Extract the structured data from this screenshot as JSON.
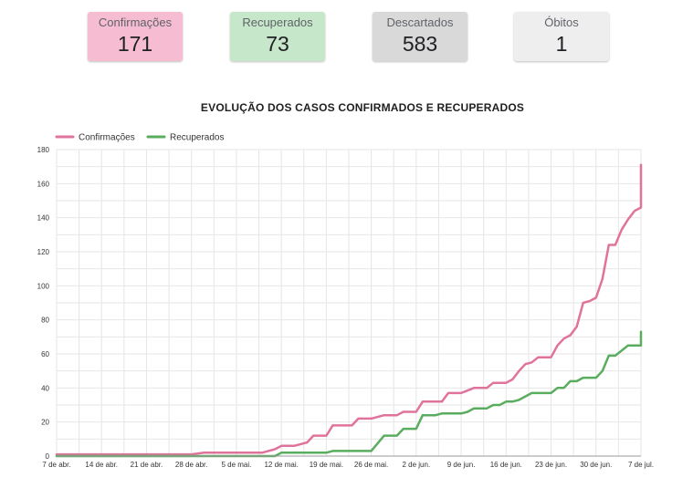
{
  "cards": [
    {
      "label": "Confirmações",
      "value": "171",
      "color": "#f6bcd1"
    },
    {
      "label": "Recuperados",
      "value": "73",
      "color": "#c6e7c9"
    },
    {
      "label": "Descartados",
      "value": "583",
      "color": "#d9d9d9"
    },
    {
      "label": "Óbitos",
      "value": "1",
      "color": "#eeeeee"
    }
  ],
  "chart_data": {
    "type": "line",
    "title": "EVOLUÇÃO DOS CASOS CONFIRMADOS E RECUPERADOS",
    "legend_position": "top-left",
    "grid": true,
    "x_range": [
      "2020-04-07",
      "2020-07-07"
    ],
    "xticks": [
      {
        "date": "2020-04-07",
        "label": "7 de abr."
      },
      {
        "date": "2020-04-14",
        "label": "14 de abr."
      },
      {
        "date": "2020-04-21",
        "label": "21 de abr."
      },
      {
        "date": "2020-04-28",
        "label": "28 de abr."
      },
      {
        "date": "2020-05-05",
        "label": "5 de mai."
      },
      {
        "date": "2020-05-12",
        "label": "12 de mai."
      },
      {
        "date": "2020-05-19",
        "label": "19 de mai."
      },
      {
        "date": "2020-05-26",
        "label": "26 de mai."
      },
      {
        "date": "2020-06-02",
        "label": "2 de jun."
      },
      {
        "date": "2020-06-09",
        "label": "9 de jun."
      },
      {
        "date": "2020-06-16",
        "label": "16 de jun."
      },
      {
        "date": "2020-06-23",
        "label": "23 de jun."
      },
      {
        "date": "2020-06-30",
        "label": "30 de jun."
      },
      {
        "date": "2020-07-07",
        "label": "7 de jul."
      }
    ],
    "ylim": [
      0,
      180
    ],
    "yticks": [
      0,
      20,
      40,
      60,
      80,
      100,
      120,
      140,
      160,
      180
    ],
    "series": [
      {
        "name": "Confirmações",
        "color": "#e0739b",
        "points": [
          [
            "2020-04-07",
            1
          ],
          [
            "2020-04-28",
            1
          ],
          [
            "2020-04-30",
            2
          ],
          [
            "2020-05-09",
            2
          ],
          [
            "2020-05-11",
            4
          ],
          [
            "2020-05-12",
            6
          ],
          [
            "2020-05-14",
            6
          ],
          [
            "2020-05-15",
            7
          ],
          [
            "2020-05-16",
            8
          ],
          [
            "2020-05-17",
            12
          ],
          [
            "2020-05-19",
            12
          ],
          [
            "2020-05-20",
            18
          ],
          [
            "2020-05-23",
            18
          ],
          [
            "2020-05-24",
            22
          ],
          [
            "2020-05-26",
            22
          ],
          [
            "2020-05-28",
            24
          ],
          [
            "2020-05-30",
            24
          ],
          [
            "2020-05-31",
            26
          ],
          [
            "2020-06-02",
            26
          ],
          [
            "2020-06-03",
            32
          ],
          [
            "2020-06-06",
            32
          ],
          [
            "2020-06-07",
            37
          ],
          [
            "2020-06-09",
            37
          ],
          [
            "2020-06-11",
            40
          ],
          [
            "2020-06-13",
            40
          ],
          [
            "2020-06-14",
            43
          ],
          [
            "2020-06-16",
            43
          ],
          [
            "2020-06-17",
            45
          ],
          [
            "2020-06-18",
            50
          ],
          [
            "2020-06-19",
            54
          ],
          [
            "2020-06-20",
            55
          ],
          [
            "2020-06-21",
            58
          ],
          [
            "2020-06-23",
            58
          ],
          [
            "2020-06-24",
            65
          ],
          [
            "2020-06-25",
            69
          ],
          [
            "2020-06-26",
            71
          ],
          [
            "2020-06-27",
            76
          ],
          [
            "2020-06-28",
            90
          ],
          [
            "2020-06-29",
            91
          ],
          [
            "2020-06-30",
            93
          ],
          [
            "2020-07-01",
            104
          ],
          [
            "2020-07-02",
            124
          ],
          [
            "2020-07-03",
            124
          ],
          [
            "2020-07-04",
            133
          ],
          [
            "2020-07-05",
            139
          ],
          [
            "2020-07-06",
            144
          ],
          [
            "2020-07-07",
            146
          ],
          [
            "2020-07-08",
            164
          ],
          [
            "2020-07-09",
            171
          ]
        ]
      },
      {
        "name": "Recuperados",
        "color": "#5aad5e",
        "points": [
          [
            "2020-04-07",
            0
          ],
          [
            "2020-05-11",
            0
          ],
          [
            "2020-05-12",
            2
          ],
          [
            "2020-05-19",
            2
          ],
          [
            "2020-05-20",
            3
          ],
          [
            "2020-05-26",
            3
          ],
          [
            "2020-05-28",
            12
          ],
          [
            "2020-05-30",
            12
          ],
          [
            "2020-05-31",
            16
          ],
          [
            "2020-06-02",
            16
          ],
          [
            "2020-06-03",
            24
          ],
          [
            "2020-06-05",
            24
          ],
          [
            "2020-06-06",
            25
          ],
          [
            "2020-06-09",
            25
          ],
          [
            "2020-06-10",
            26
          ],
          [
            "2020-06-11",
            28
          ],
          [
            "2020-06-13",
            28
          ],
          [
            "2020-06-14",
            30
          ],
          [
            "2020-06-15",
            30
          ],
          [
            "2020-06-16",
            32
          ],
          [
            "2020-06-17",
            32
          ],
          [
            "2020-06-18",
            33
          ],
          [
            "2020-06-20",
            37
          ],
          [
            "2020-06-23",
            37
          ],
          [
            "2020-06-24",
            40
          ],
          [
            "2020-06-25",
            40
          ],
          [
            "2020-06-26",
            44
          ],
          [
            "2020-06-27",
            44
          ],
          [
            "2020-06-28",
            46
          ],
          [
            "2020-06-30",
            46
          ],
          [
            "2020-07-01",
            50
          ],
          [
            "2020-07-02",
            59
          ],
          [
            "2020-07-03",
            59
          ],
          [
            "2020-07-04",
            62
          ],
          [
            "2020-07-05",
            65
          ],
          [
            "2020-07-08",
            65
          ],
          [
            "2020-07-09",
            73
          ]
        ]
      }
    ]
  }
}
